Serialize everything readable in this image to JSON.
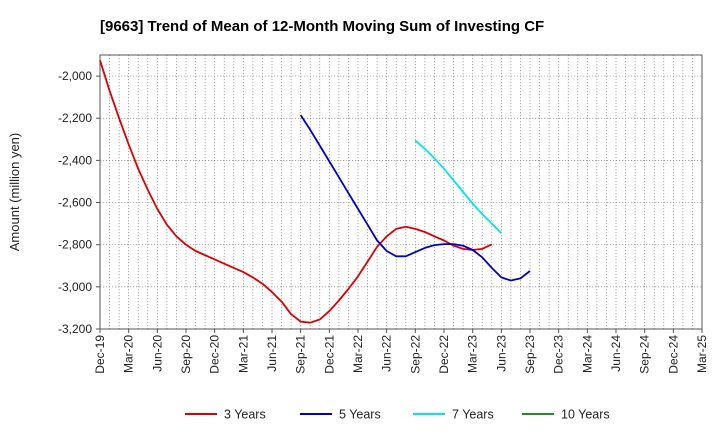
{
  "chart_data": {
    "type": "line",
    "title": "[9663]  Trend of Mean of 12-Month Moving Sum of Investing CF",
    "ylabel": "Amount (million yen)",
    "xlabel": "",
    "ylim": [
      -3200,
      -1900
    ],
    "yticks": [
      -2000,
      -2200,
      -2400,
      -2600,
      -2800,
      -3000,
      -3200
    ],
    "ytick_labels": [
      "-2,000",
      "-2,200",
      "-2,400",
      "-2,600",
      "-2,800",
      "-3,000",
      "-3,200"
    ],
    "x_categories": [
      "Dec-19",
      "Mar-20",
      "Jun-20",
      "Sep-20",
      "Dec-20",
      "Mar-21",
      "Jun-21",
      "Sep-21",
      "Dec-21",
      "Mar-22",
      "Jun-22",
      "Sep-22",
      "Dec-22",
      "Mar-23",
      "Jun-23",
      "Sep-23",
      "Dec-23",
      "Mar-24",
      "Jun-24",
      "Sep-24",
      "Dec-24",
      "Mar-25"
    ],
    "grid": true,
    "series": [
      {
        "name": "3 Years",
        "color": "#dd0000",
        "start_index": 0,
        "values": [
          -1925,
          -2070,
          -2200,
          -2325,
          -2440,
          -2540,
          -2630,
          -2705,
          -2760,
          -2800,
          -2830,
          -2850,
          -2870,
          -2890,
          -2910,
          -2930,
          -2955,
          -2985,
          -3025,
          -3070,
          -3130,
          -3165,
          -3170,
          -3155,
          -3115,
          -3065,
          -3010,
          -2950,
          -2880,
          -2810,
          -2760,
          -2725,
          -2715,
          -2725,
          -2740,
          -2760,
          -2780,
          -2805,
          -2820,
          -2825,
          -2820,
          -2798
        ]
      },
      {
        "name": "5 Years",
        "color": "#0000cc",
        "start_index": 21,
        "values": [
          -2185,
          -2255,
          -2330,
          -2405,
          -2480,
          -2555,
          -2630,
          -2705,
          -2780,
          -2830,
          -2855,
          -2855,
          -2835,
          -2815,
          -2802,
          -2797,
          -2797,
          -2805,
          -2825,
          -2860,
          -2910,
          -2955,
          -2970,
          -2960,
          -2925
        ]
      },
      {
        "name": "7 Years",
        "color": "#00e5ee",
        "start_index": 33,
        "values": [
          -2305,
          -2345,
          -2390,
          -2440,
          -2495,
          -2550,
          -2605,
          -2655,
          -2700,
          -2745
        ]
      },
      {
        "name": "10 Years",
        "color": "#228b22",
        "start_index": 0,
        "values": []
      }
    ]
  }
}
